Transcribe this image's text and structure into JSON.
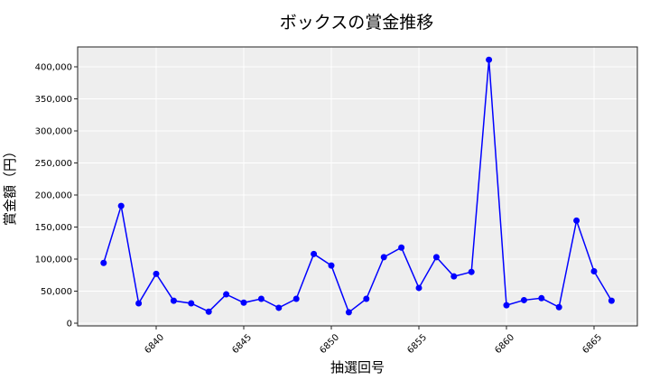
{
  "chart_data": {
    "type": "line",
    "title": "ボックスの賞金推移",
    "xlabel": "抽選回号",
    "ylabel": "賞金額（円）",
    "x": [
      6837,
      6838,
      6839,
      6840,
      6841,
      6842,
      6843,
      6844,
      6845,
      6846,
      6847,
      6848,
      6849,
      6850,
      6851,
      6852,
      6853,
      6854,
      6855,
      6856,
      6857,
      6858,
      6859,
      6860,
      6861,
      6862,
      6863,
      6864,
      6865,
      6866
    ],
    "values": [
      94000,
      183000,
      31000,
      77000,
      35000,
      31000,
      18000,
      45000,
      32000,
      38000,
      24000,
      38000,
      108000,
      90000,
      17000,
      38000,
      103000,
      118000,
      55000,
      103000,
      73000,
      80000,
      411000,
      28000,
      36000,
      39000,
      25000,
      160000,
      81000,
      35000
    ],
    "xticks": [
      6840,
      6845,
      6850,
      6855,
      6860,
      6865
    ],
    "yticks": [
      0,
      50000,
      100000,
      150000,
      200000,
      250000,
      300000,
      350000,
      400000
    ],
    "ytick_labels": [
      "0",
      "50,000",
      "100,000",
      "150,000",
      "200,000",
      "250,000",
      "300,000",
      "350,000",
      "400,000"
    ],
    "xlim": [
      6835.6,
      6867.6
    ],
    "ylim": [
      -5000,
      430000
    ],
    "grid": true,
    "line_color": "#0000ff",
    "marker_color": "#0000ff",
    "background_color": "#eeeeee"
  }
}
